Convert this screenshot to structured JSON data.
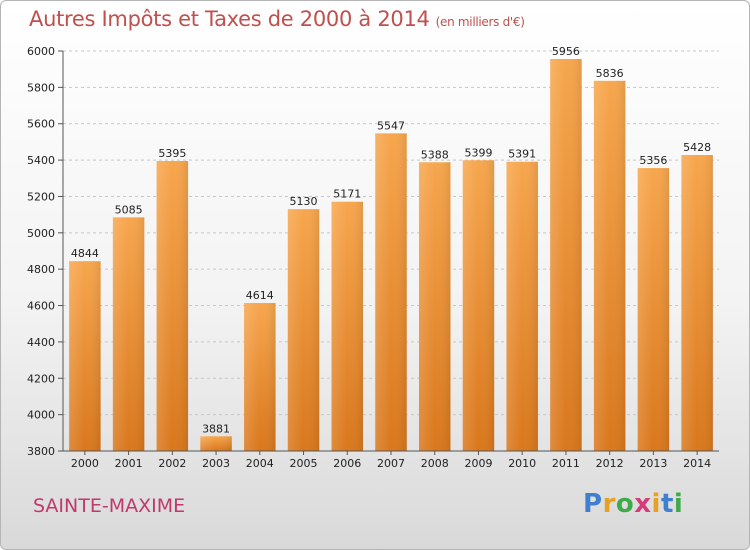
{
  "title": "Autres Impôts et Taxes de 2000 à 2014",
  "title_unit": "(en milliers d'€)",
  "city": "SAINTE-MAXIME",
  "logo": {
    "letters": [
      "P",
      "r",
      "o",
      "x",
      "i",
      "t",
      "i"
    ],
    "colors": [
      "#3f7fcf",
      "#e8a020",
      "#3faa4a",
      "#d63c7a",
      "#e8a020",
      "#3f7fcf",
      "#3faa4a"
    ]
  },
  "chart_data": {
    "type": "bar",
    "categories": [
      "2000",
      "2001",
      "2002",
      "2003",
      "2004",
      "2005",
      "2006",
      "2007",
      "2008",
      "2009",
      "2010",
      "2011",
      "2012",
      "2013",
      "2014"
    ],
    "values": [
      4844,
      5085,
      5395,
      3881,
      4614,
      5130,
      5171,
      5547,
      5388,
      5399,
      5391,
      5956,
      5836,
      5356,
      5428
    ],
    "ylim": [
      3800,
      6000
    ],
    "yticks": [
      3800,
      4000,
      4200,
      4400,
      4600,
      4800,
      5000,
      5200,
      5400,
      5600,
      5800,
      6000
    ],
    "grid": true,
    "bar_color": "#f0922f"
  }
}
